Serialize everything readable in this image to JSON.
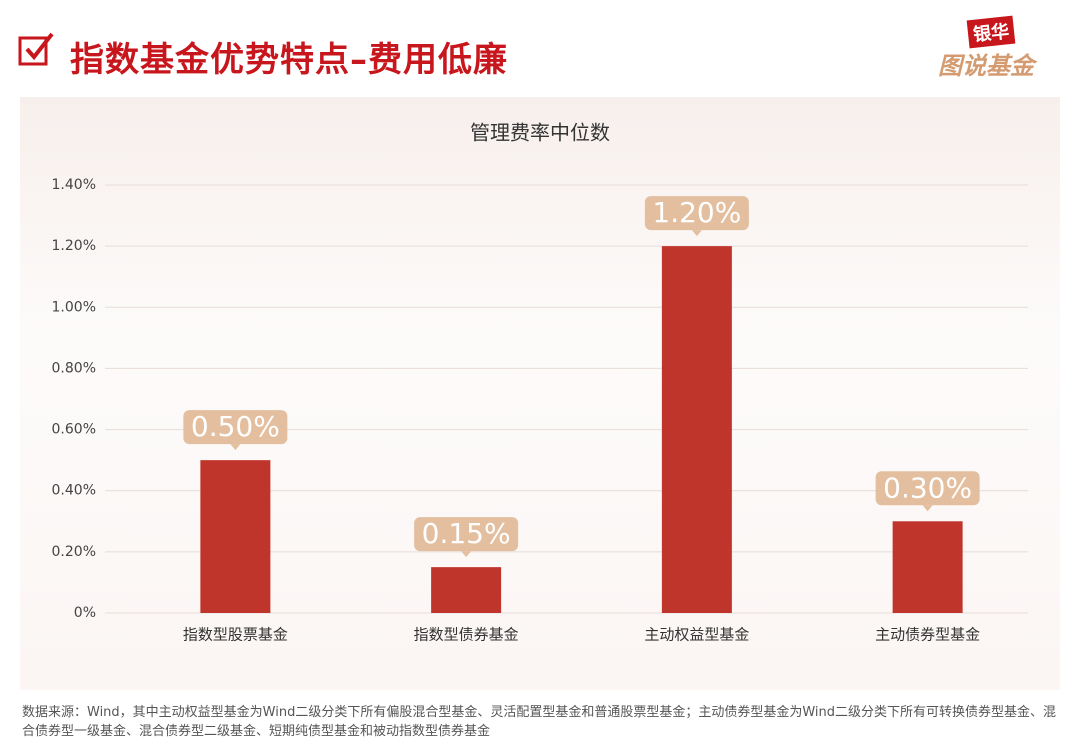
{
  "header": {
    "title": "指数基金优势特点–费用低廉",
    "logo_top": "银华",
    "logo_bottom": "图说基金"
  },
  "chart_data": {
    "type": "bar",
    "title": "管理费率中位数",
    "categories": [
      "指数型股票基金",
      "指数型债券基金",
      "主动权益型基金",
      "主动债券型基金"
    ],
    "values": [
      0.5,
      0.15,
      1.2,
      0.3
    ],
    "value_labels": [
      "0.50%",
      "0.15%",
      "1.20%",
      "0.30%"
    ],
    "color": "#c0352b",
    "label_color": "#e3bf9f",
    "ylim": [
      0,
      1.4
    ],
    "yticks": [
      {
        "value": 0,
        "label": "0%"
      },
      {
        "value": 0.2,
        "label": "0.20%"
      },
      {
        "value": 0.4,
        "label": "0.40%"
      },
      {
        "value": 0.6,
        "label": "0.60%"
      },
      {
        "value": 0.8,
        "label": "0.80%"
      },
      {
        "value": 1.0,
        "label": "1.00%"
      },
      {
        "value": 1.2,
        "label": "1.20%"
      },
      {
        "value": 1.4,
        "label": "1.40%"
      }
    ],
    "grid": true
  },
  "footnote": "数据来源：Wind，其中主动权益型基金为Wind二级分类下所有偏股混合型基金、灵活配置型基金和普通股票型基金；主动债券型基金为Wind二级分类下所有可转换债券型基金、混合债券型一级基金、混合债券型二级基金、短期纯债型基金和被动指数型债券基金"
}
